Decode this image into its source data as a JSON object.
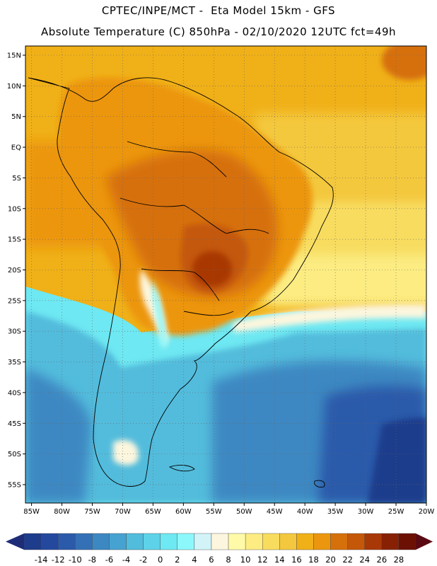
{
  "header": {
    "line1": "CPTEC/INPE/MCT -  Eta Model 15km - GFS",
    "line2": "Absolute Temperature (C) 850hPa - 02/10/2020 12UTC fct=49h"
  },
  "map": {
    "lon_labels": [
      "85W",
      "80W",
      "75W",
      "70W",
      "65W",
      "60W",
      "55W",
      "50W",
      "45W",
      "40W",
      "35W",
      "30W",
      "25W",
      "20W"
    ],
    "lat_labels": [
      "15N",
      "10N",
      "5N",
      "EQ",
      "5S",
      "10S",
      "15S",
      "20S",
      "25S",
      "30S",
      "35S",
      "40S",
      "45S",
      "50S",
      "55S"
    ],
    "lon_values": [
      -85,
      -80,
      -75,
      -70,
      -65,
      -60,
      -55,
      -50,
      -45,
      -40,
      -35,
      -30,
      -25,
      -20
    ],
    "lat_values": [
      15,
      10,
      5,
      0,
      -5,
      -10,
      -15,
      -20,
      -25,
      -30,
      -35,
      -40,
      -45,
      -50,
      -55
    ],
    "extent": {
      "lon_min": -86,
      "lon_max": -20,
      "lat_min": -58,
      "lat_max": 16.5
    }
  },
  "colorbar": {
    "labels": [
      "-14",
      "-12",
      "-10",
      "-8",
      "-6",
      "-4",
      "-2",
      "0",
      "2",
      "4",
      "6",
      "8",
      "10",
      "12",
      "14",
      "16",
      "18",
      "20",
      "22",
      "24",
      "26",
      "28"
    ],
    "colors": [
      "#1e3c8c",
      "#24489e",
      "#2c5aaa",
      "#3470b6",
      "#3c88c2",
      "#46a2d0",
      "#52bcdc",
      "#5ed2e8",
      "#6ee8f2",
      "#8cf8fc",
      "#d2f4f8",
      "#fcf6de",
      "#fefaa8",
      "#fcec82",
      "#f8dc5e",
      "#f4c83e",
      "#f0b018",
      "#ec9610",
      "#d6700a",
      "#c45808",
      "#a83806",
      "#882004",
      "#6c1004"
    ]
  }
}
